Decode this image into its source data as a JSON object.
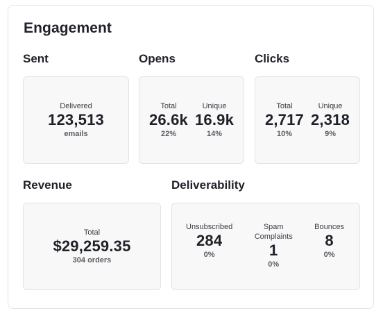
{
  "title": "Engagement",
  "sections": {
    "sent": {
      "title": "Sent",
      "metric": {
        "label": "Delivered",
        "value": "123,513",
        "sub": "emails"
      }
    },
    "opens": {
      "title": "Opens",
      "metrics": [
        {
          "label": "Total",
          "value": "26.6k",
          "sub": "22%"
        },
        {
          "label": "Unique",
          "value": "16.9k",
          "sub": "14%"
        }
      ]
    },
    "clicks": {
      "title": "Clicks",
      "metrics": [
        {
          "label": "Total",
          "value": "2,717",
          "sub": "10%"
        },
        {
          "label": "Unique",
          "value": "2,318",
          "sub": "9%"
        }
      ]
    },
    "revenue": {
      "title": "Revenue",
      "metric": {
        "label": "Total",
        "value": "$29,259.35",
        "sub": "304 orders"
      }
    },
    "deliverability": {
      "title": "Deliverability",
      "metrics": [
        {
          "label": "Unsubscribed",
          "value": "284",
          "sub": "0%"
        },
        {
          "label": "Spam Complaints",
          "value": "1",
          "sub": "0%"
        },
        {
          "label": "Bounces",
          "value": "8",
          "sub": "0%"
        }
      ]
    }
  }
}
